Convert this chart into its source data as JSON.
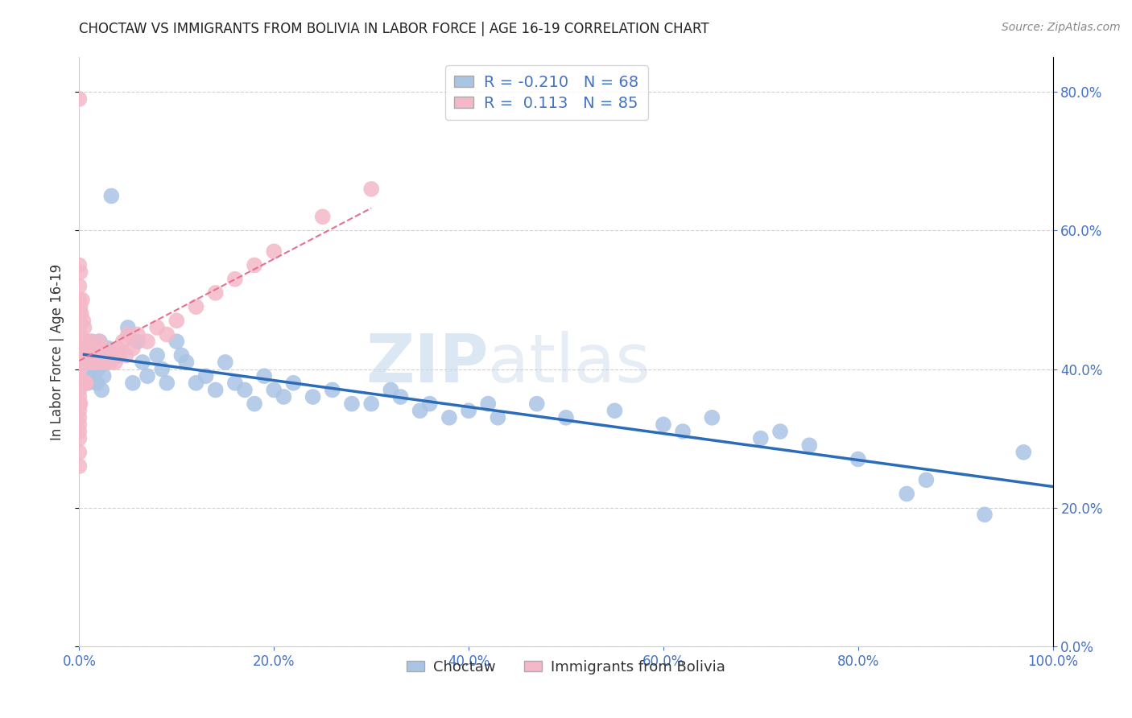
{
  "title": "CHOCTAW VS IMMIGRANTS FROM BOLIVIA IN LABOR FORCE | AGE 16-19 CORRELATION CHART",
  "source": "Source: ZipAtlas.com",
  "ylabel": "In Labor Force | Age 16-19",
  "legend_labels": [
    "Choctaw",
    "Immigrants from Bolivia"
  ],
  "choctaw_R": -0.21,
  "choctaw_N": 68,
  "bolivia_R": 0.113,
  "bolivia_N": 85,
  "choctaw_color": "#aac4e4",
  "choctaw_line_color": "#2b6cb8",
  "bolivia_color": "#f4b8c8",
  "bolivia_line_color": "#e87090",
  "watermark_zip": "ZIP",
  "watermark_atlas": "atlas",
  "background_color": "#ffffff",
  "xlim": [
    0.0,
    1.0
  ],
  "ylim": [
    0.0,
    0.85
  ],
  "yticks": [
    0.0,
    0.2,
    0.4,
    0.6,
    0.8
  ],
  "xticks": [
    0.0,
    0.2,
    0.4,
    0.6,
    0.8,
    1.0
  ],
  "choctaw_x": [
    0.005,
    0.007,
    0.009,
    0.01,
    0.012,
    0.013,
    0.015,
    0.016,
    0.017,
    0.018,
    0.019,
    0.02,
    0.021,
    0.022,
    0.023,
    0.025,
    0.028,
    0.03,
    0.033,
    0.04,
    0.05,
    0.055,
    0.06,
    0.065,
    0.07,
    0.08,
    0.085,
    0.09,
    0.1,
    0.105,
    0.11,
    0.12,
    0.13,
    0.14,
    0.15,
    0.16,
    0.17,
    0.18,
    0.19,
    0.2,
    0.21,
    0.22,
    0.24,
    0.26,
    0.28,
    0.3,
    0.32,
    0.33,
    0.35,
    0.36,
    0.38,
    0.4,
    0.42,
    0.43,
    0.47,
    0.5,
    0.55,
    0.6,
    0.62,
    0.65,
    0.7,
    0.72,
    0.75,
    0.8,
    0.85,
    0.87,
    0.93,
    0.97
  ],
  "choctaw_y": [
    0.43,
    0.41,
    0.38,
    0.42,
    0.4,
    0.44,
    0.39,
    0.41,
    0.43,
    0.38,
    0.4,
    0.42,
    0.44,
    0.41,
    0.37,
    0.39,
    0.41,
    0.43,
    0.65,
    0.42,
    0.46,
    0.38,
    0.44,
    0.41,
    0.39,
    0.42,
    0.4,
    0.38,
    0.44,
    0.42,
    0.41,
    0.38,
    0.39,
    0.37,
    0.41,
    0.38,
    0.37,
    0.35,
    0.39,
    0.37,
    0.36,
    0.38,
    0.36,
    0.37,
    0.35,
    0.35,
    0.37,
    0.36,
    0.34,
    0.35,
    0.33,
    0.34,
    0.35,
    0.33,
    0.35,
    0.33,
    0.34,
    0.32,
    0.31,
    0.33,
    0.3,
    0.31,
    0.29,
    0.27,
    0.22,
    0.24,
    0.19,
    0.28
  ],
  "bolivia_x": [
    0.0,
    0.0,
    0.0,
    0.0,
    0.0,
    0.0,
    0.0,
    0.0,
    0.0,
    0.0,
    0.0,
    0.0,
    0.0,
    0.0,
    0.0,
    0.0,
    0.0,
    0.0,
    0.0,
    0.0,
    0.0,
    0.0,
    0.0,
    0.0,
    0.0,
    0.001,
    0.001,
    0.001,
    0.001,
    0.001,
    0.001,
    0.002,
    0.002,
    0.002,
    0.003,
    0.003,
    0.003,
    0.004,
    0.004,
    0.005,
    0.005,
    0.006,
    0.006,
    0.007,
    0.007,
    0.008,
    0.009,
    0.01,
    0.011,
    0.012,
    0.013,
    0.014,
    0.015,
    0.016,
    0.017,
    0.018,
    0.019,
    0.02,
    0.022,
    0.024,
    0.025,
    0.027,
    0.028,
    0.03,
    0.032,
    0.035,
    0.037,
    0.04,
    0.042,
    0.045,
    0.048,
    0.05,
    0.055,
    0.06,
    0.07,
    0.08,
    0.09,
    0.1,
    0.12,
    0.14,
    0.16,
    0.18,
    0.2,
    0.25,
    0.3
  ],
  "bolivia_y": [
    0.79,
    0.55,
    0.52,
    0.5,
    0.48,
    0.47,
    0.46,
    0.45,
    0.44,
    0.43,
    0.42,
    0.41,
    0.4,
    0.39,
    0.38,
    0.37,
    0.36,
    0.35,
    0.34,
    0.33,
    0.32,
    0.31,
    0.3,
    0.28,
    0.26,
    0.54,
    0.49,
    0.44,
    0.42,
    0.38,
    0.35,
    0.48,
    0.44,
    0.38,
    0.5,
    0.44,
    0.38,
    0.47,
    0.38,
    0.46,
    0.38,
    0.44,
    0.38,
    0.44,
    0.38,
    0.42,
    0.41,
    0.44,
    0.42,
    0.41,
    0.43,
    0.41,
    0.43,
    0.41,
    0.43,
    0.42,
    0.41,
    0.44,
    0.42,
    0.41,
    0.43,
    0.42,
    0.41,
    0.42,
    0.41,
    0.42,
    0.41,
    0.43,
    0.42,
    0.44,
    0.42,
    0.45,
    0.43,
    0.45,
    0.44,
    0.46,
    0.45,
    0.47,
    0.49,
    0.51,
    0.53,
    0.55,
    0.57,
    0.62,
    0.66
  ]
}
